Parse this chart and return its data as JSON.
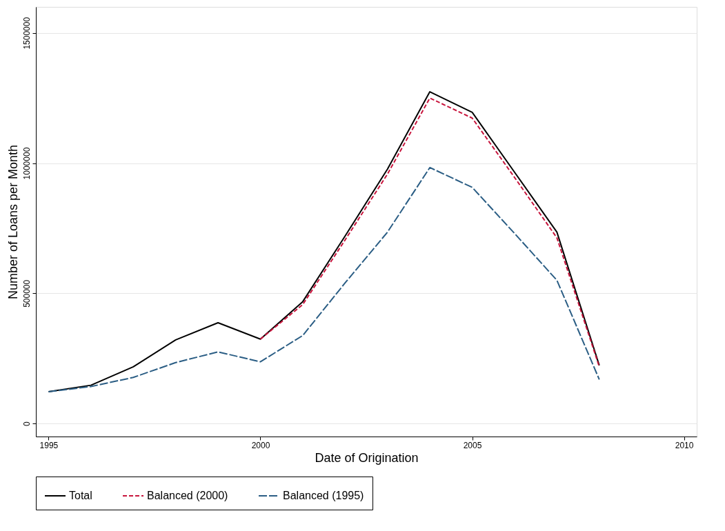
{
  "chart_data": {
    "type": "line",
    "xlabel": "Date of Origination",
    "ylabel": "Number of Loans per Month",
    "x": [
      1995,
      1996,
      1997,
      1998,
      1999,
      2000,
      2001,
      2002,
      2003,
      2004,
      2005,
      2006,
      2007,
      2008
    ],
    "series": [
      {
        "name": "Total",
        "color": "#000000",
        "line_style": "solid",
        "values": [
          122000,
          147000,
          218000,
          321000,
          387000,
          324000,
          468000,
          720000,
          977000,
          1274000,
          1195000,
          965000,
          735000,
          223000
        ]
      },
      {
        "name": "Balanced (2000)",
        "color": "#c8143c",
        "line_style": "dashed",
        "x": [
          2000,
          2001,
          2002,
          2003,
          2004,
          2005,
          2006,
          2007,
          2008
        ],
        "values": [
          324000,
          457000,
          705000,
          958000,
          1250000,
          1173000,
          945000,
          713000,
          218000
        ]
      },
      {
        "name": "Balanced (1995)",
        "color": "#2a5d84",
        "line_style": "dashed",
        "values": [
          122000,
          142000,
          177000,
          234000,
          275000,
          237000,
          338000,
          540000,
          735000,
          983000,
          907000,
          730000,
          550000,
          169000
        ]
      }
    ],
    "xlim": [
      1994.7,
      2010.3
    ],
    "xticks": [
      1995,
      2000,
      2005,
      2010
    ],
    "ylim": [
      -50000,
      1600000
    ],
    "yticks": [
      0,
      500000,
      1000000,
      1500000
    ],
    "grid": "y",
    "legend": "bottom",
    "marker": "none"
  }
}
